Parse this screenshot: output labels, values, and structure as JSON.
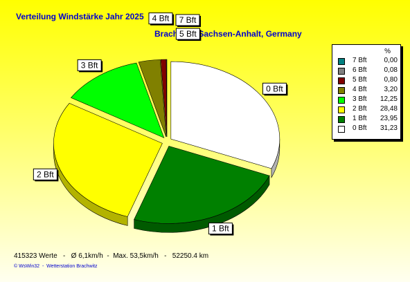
{
  "title": "Verteilung Windstärke  Jahr 2025",
  "subtitle": "Brachwitz, Sachsen-Anhalt, Germany",
  "legend": {
    "header": "%"
  },
  "chart_data": {
    "type": "pie",
    "title": "Verteilung Windstärke  Jahr 2025",
    "subtitle": "Brachwitz, Sachsen-Anhalt, Germany",
    "legend_position": "top-right",
    "slices": [
      {
        "label": "7 Bft",
        "value": 0.0,
        "value_text": "0,00",
        "color": "#008080"
      },
      {
        "label": "6 Bft",
        "value": 0.08,
        "value_text": "0,08",
        "color": "#808080"
      },
      {
        "label": "5 Bft",
        "value": 0.8,
        "value_text": "0,80",
        "color": "#800000"
      },
      {
        "label": "4 Bft",
        "value": 3.2,
        "value_text": "3,20",
        "color": "#808000"
      },
      {
        "label": "3 Bft",
        "value": 12.25,
        "value_text": "12,25",
        "color": "#00ff00"
      },
      {
        "label": "2 Bft",
        "value": 28.48,
        "value_text": "28,48",
        "color": "#ffff00"
      },
      {
        "label": "1 Bft",
        "value": 23.95,
        "value_text": "23,95",
        "color": "#008000"
      },
      {
        "label": "0 Bft",
        "value": 31.23,
        "value_text": "31,23",
        "color": "#ffffff"
      }
    ]
  },
  "footer": {
    "stats": "415323 Werte   -   Ø 6,1km/h  -  Max. 53,5km/h   -   52250.4 km",
    "copyright": "© WsWin32  -  Wetterstation Brachwitz"
  }
}
